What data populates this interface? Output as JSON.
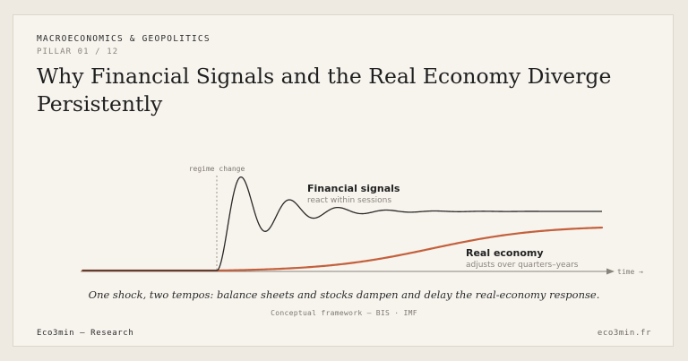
{
  "header": {
    "kicker": "MACROECONOMICS & GEOPOLITICS",
    "pillar": "PILLAR 01 / 12",
    "title": "Why Financial Signals and the Real Economy Diverge Persistently"
  },
  "diagram": {
    "regime_label": "regime change",
    "time_label": "time →",
    "financial": {
      "title": "Financial signals",
      "subtitle": "react within sessions",
      "color": "#2a2826"
    },
    "real": {
      "title": "Real economy",
      "subtitle": "adjusts over quarters–years",
      "color": "#c4603c"
    },
    "axis_color": "#8a857c"
  },
  "caption": "One shock, two tempos: balance sheets and stocks dampen and delay the real-economy response.",
  "source": "Conceptual framework — BIS · IMF",
  "footer": {
    "brand": "Eco3min — Research",
    "site": "eco3min.fr"
  }
}
